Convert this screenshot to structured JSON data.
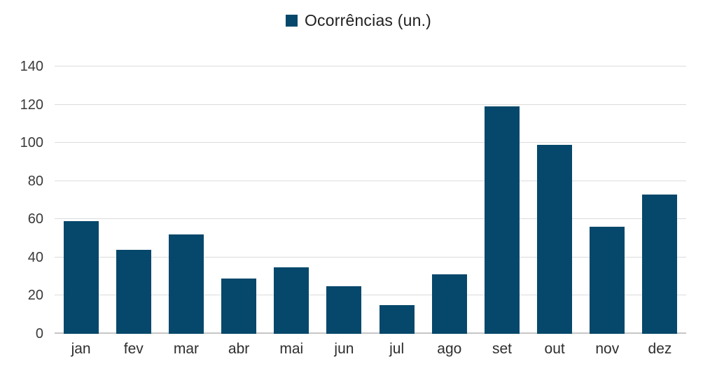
{
  "chart_data": {
    "type": "bar",
    "title": "",
    "legend": "Ocorrências (un.)",
    "legend_position": "top-center",
    "legend_marker": "filled-square",
    "categories": [
      "jan",
      "fev",
      "mar",
      "abr",
      "mai",
      "jun",
      "jul",
      "ago",
      "set",
      "out",
      "nov",
      "dez"
    ],
    "values": [
      59,
      44,
      52,
      29,
      35,
      25,
      15,
      31,
      119,
      99,
      56,
      73
    ],
    "xlabel": "",
    "ylabel": "",
    "ylim": [
      0,
      140
    ],
    "yticks": [
      0,
      20,
      40,
      60,
      80,
      100,
      120,
      140
    ],
    "grid": true,
    "colors": {
      "bar": "#05486B",
      "gridline": "#DCDCDC",
      "axis_line": "#C6C6C6",
      "tick_text": "#3a3a3a",
      "legend_text": "#212121"
    }
  }
}
